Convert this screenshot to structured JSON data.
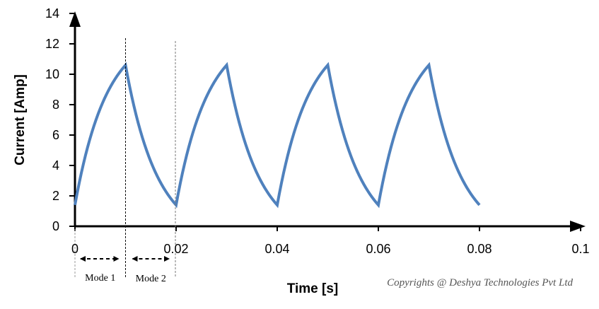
{
  "chart_data": {
    "type": "line",
    "title": "",
    "xlabel": "Time [s]",
    "ylabel": "Current [Amp]",
    "xlim": [
      0,
      0.1
    ],
    "ylim": [
      0,
      14
    ],
    "x_ticks": [
      "0",
      "0.02",
      "0.04",
      "0.06",
      "0.08",
      "0.1"
    ],
    "y_ticks": [
      "0",
      "2",
      "4",
      "6",
      "8",
      "10",
      "12",
      "14"
    ],
    "grid": false,
    "legend": "none",
    "line_color": "#4f81bd",
    "series": [
      {
        "x": [
          0,
          0.01,
          0.02,
          0.03,
          0.04,
          0.05,
          0.06,
          0.07,
          0.08
        ],
        "y": [
          1.4,
          10.6,
          1.4,
          10.6,
          1.4,
          10.6,
          1.4,
          10.6,
          1.4
        ],
        "segment_shapes": [
          "rise",
          "fall",
          "rise",
          "fall",
          "rise",
          "fall",
          "rise",
          "fall"
        ]
      }
    ],
    "annotations": {
      "mode1_label": "Mode 1",
      "mode2_label": "Mode 2",
      "mode1_x": [
        0,
        0.01
      ],
      "mode2_x": [
        0.01,
        0.02
      ]
    },
    "copyright": "Copyrights @ Deshya Technologies Pvt Ltd"
  }
}
